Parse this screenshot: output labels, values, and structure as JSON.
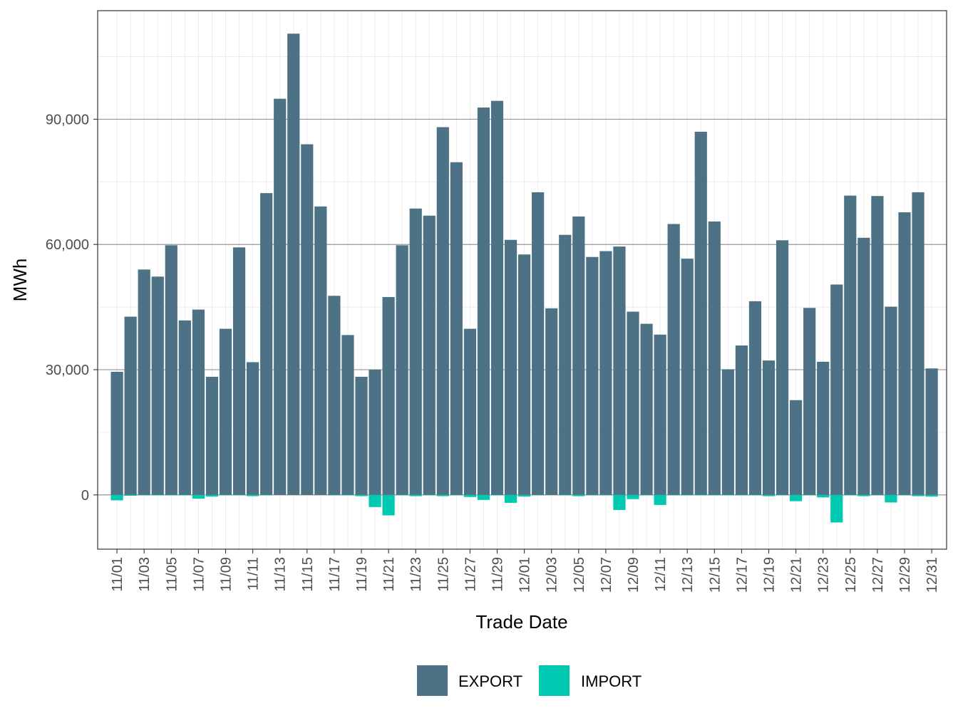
{
  "chart_data": {
    "type": "bar",
    "stacked": true,
    "xlabel": "Trade Date",
    "ylabel": "MWh",
    "ylim": [
      -13000,
      116000
    ],
    "y_ticks": [
      0,
      30000,
      60000,
      90000
    ],
    "y_tick_labels": [
      "0",
      "30,000",
      "60,000",
      "90,000"
    ],
    "categories": [
      "11/01",
      "11/02",
      "11/03",
      "11/04",
      "11/05",
      "11/06",
      "11/07",
      "11/08",
      "11/09",
      "11/10",
      "11/11",
      "11/12",
      "11/13",
      "11/14",
      "11/15",
      "11/16",
      "11/17",
      "11/18",
      "11/19",
      "11/20",
      "11/21",
      "11/22",
      "11/23",
      "11/24",
      "11/25",
      "11/26",
      "11/27",
      "11/28",
      "11/29",
      "11/30",
      "12/01",
      "12/02",
      "12/03",
      "12/04",
      "12/05",
      "12/06",
      "12/07",
      "12/08",
      "12/09",
      "12/10",
      "12/11",
      "12/12",
      "12/13",
      "12/14",
      "12/15",
      "12/16",
      "12/17",
      "12/18",
      "12/19",
      "12/20",
      "12/21",
      "12/22",
      "12/23",
      "12/24",
      "12/25",
      "12/26",
      "12/27",
      "12/28",
      "12/29",
      "12/30",
      "12/31"
    ],
    "x_tick_labels": [
      "11/01",
      "11/03",
      "11/05",
      "11/07",
      "11/09",
      "11/11",
      "11/13",
      "11/15",
      "11/17",
      "11/19",
      "11/21",
      "11/23",
      "11/25",
      "11/27",
      "11/29",
      "12/01",
      "12/03",
      "12/05",
      "12/07",
      "12/09",
      "12/11",
      "12/13",
      "12/15",
      "12/17",
      "12/19",
      "12/21",
      "12/23",
      "12/25",
      "12/27",
      "12/29",
      "12/31"
    ],
    "series": [
      {
        "name": "EXPORT",
        "color": "#4e7285",
        "values": [
          29500,
          42700,
          54000,
          52300,
          59800,
          41800,
          44400,
          28300,
          39800,
          59300,
          31800,
          72300,
          94900,
          110500,
          84000,
          69100,
          47700,
          38300,
          28300,
          30000,
          47400,
          59800,
          68600,
          66900,
          88100,
          79700,
          39800,
          92800,
          94400,
          61100,
          57600,
          72500,
          44700,
          62300,
          66700,
          57000,
          58400,
          59500,
          43900,
          41000,
          38400,
          64900,
          56600,
          87000,
          65500,
          30100,
          35800,
          46400,
          32200,
          61000,
          22700,
          44800,
          31900,
          50400,
          71700,
          61600,
          71600,
          45100,
          67700,
          72500,
          30300
        ]
      },
      {
        "name": "IMPORT",
        "color": "#00c9b1",
        "values": [
          -1300,
          -200,
          -100,
          -100,
          -100,
          -100,
          -900,
          -400,
          -100,
          -100,
          -300,
          -100,
          0,
          0,
          0,
          0,
          -100,
          -100,
          -300,
          -2900,
          -4900,
          -100,
          -300,
          -100,
          -300,
          -100,
          -500,
          -1200,
          -100,
          -1900,
          -400,
          -100,
          0,
          -100,
          -300,
          -100,
          -100,
          -3600,
          -1000,
          -100,
          -2400,
          -100,
          -100,
          -100,
          -100,
          -100,
          -100,
          -100,
          -300,
          -100,
          -1500,
          -100,
          -600,
          -6600,
          -100,
          -300,
          -100,
          -1800,
          -100,
          -300,
          -400
        ]
      }
    ],
    "grid": true,
    "legend_position": "bottom"
  },
  "legend": {
    "items": [
      {
        "label": "EXPORT",
        "color": "#4e7285"
      },
      {
        "label": "IMPORT",
        "color": "#00c9b1"
      }
    ]
  }
}
